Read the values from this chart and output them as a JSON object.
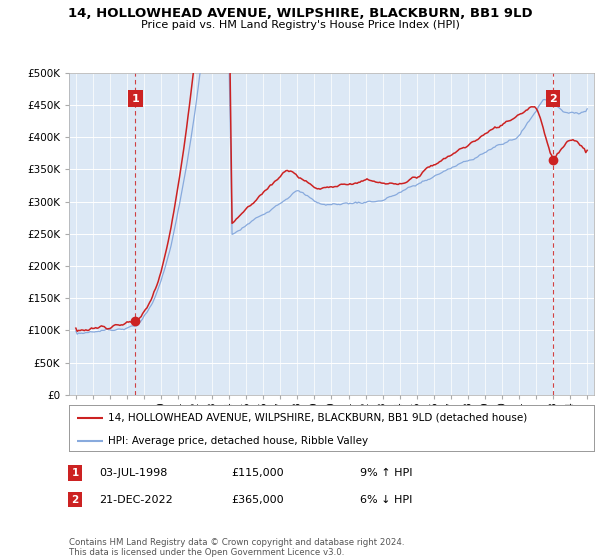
{
  "title": "14, HOLLOWHEAD AVENUE, WILPSHIRE, BLACKBURN, BB1 9LD",
  "subtitle": "Price paid vs. HM Land Registry's House Price Index (HPI)",
  "red_label": "14, HOLLOWHEAD AVENUE, WILPSHIRE, BLACKBURN, BB1 9LD (detached house)",
  "blue_label": "HPI: Average price, detached house, Ribble Valley",
  "point1_date": "03-JUL-1998",
  "point1_price": 115000,
  "point1_note": "9% ↑ HPI",
  "point2_date": "21-DEC-2022",
  "point2_price": 365000,
  "point2_note": "6% ↓ HPI",
  "footer": "Contains HM Land Registry data © Crown copyright and database right 2024.\nThis data is licensed under the Open Government Licence v3.0.",
  "ylim": [
    0,
    500000
  ],
  "yticks": [
    0,
    50000,
    100000,
    150000,
    200000,
    250000,
    300000,
    350000,
    400000,
    450000,
    500000
  ],
  "red_color": "#cc2222",
  "blue_color": "#88aadd",
  "plot_bg_color": "#dce8f5",
  "bg_color": "#ffffff",
  "grid_color": "#ffffff",
  "point1_year": 1998.5,
  "point2_year": 2022.96
}
